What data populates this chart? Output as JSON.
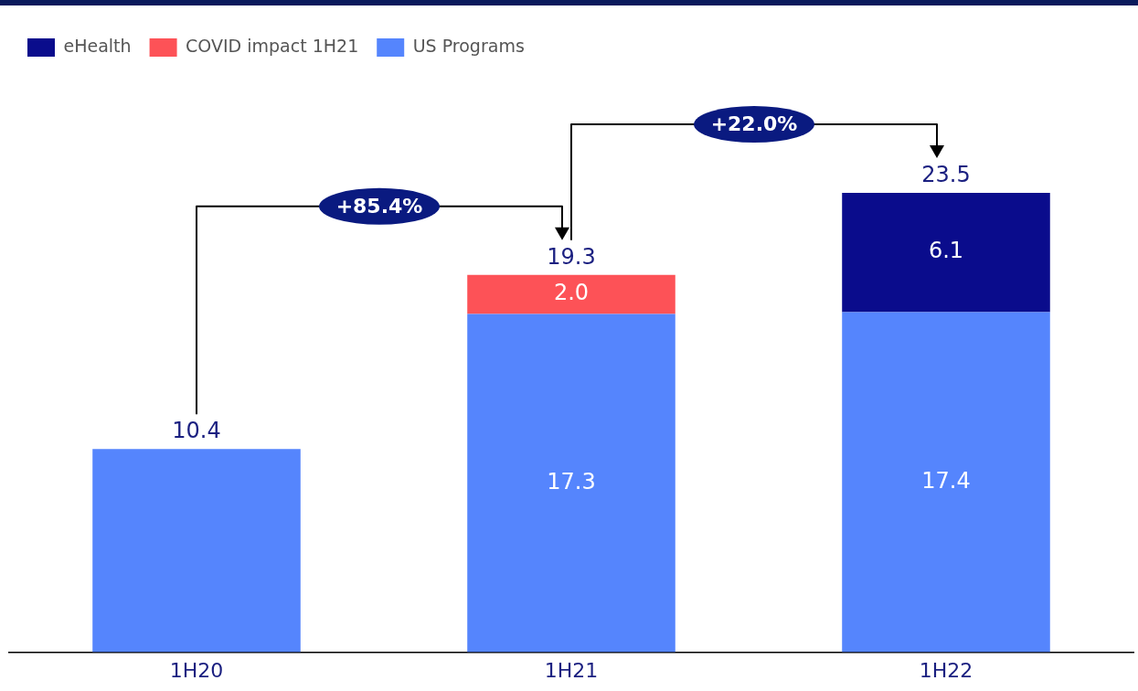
{
  "chart_data": {
    "type": "bar",
    "stacked": true,
    "categories": [
      "1H20",
      "1H21",
      "1H22"
    ],
    "series": [
      {
        "name": "US Programs",
        "color": "#5585fd",
        "values": [
          10.4,
          17.3,
          17.4
        ],
        "value_labels": [
          null,
          "17.3",
          "17.4"
        ]
      },
      {
        "name": "COVID impact 1H21",
        "color": "#fd5257",
        "values": [
          null,
          2.0,
          null
        ],
        "value_labels": [
          null,
          "2.0",
          null
        ]
      },
      {
        "name": "eHealth",
        "color": "#0a0c8c",
        "values": [
          null,
          null,
          6.1
        ],
        "value_labels": [
          null,
          null,
          "6.1"
        ]
      }
    ],
    "totals": [
      "10.4",
      "19.3",
      "23.5"
    ],
    "annotations": [
      "+85.4%",
      "+22.0%"
    ],
    "grid": false,
    "legend": "top left"
  }
}
